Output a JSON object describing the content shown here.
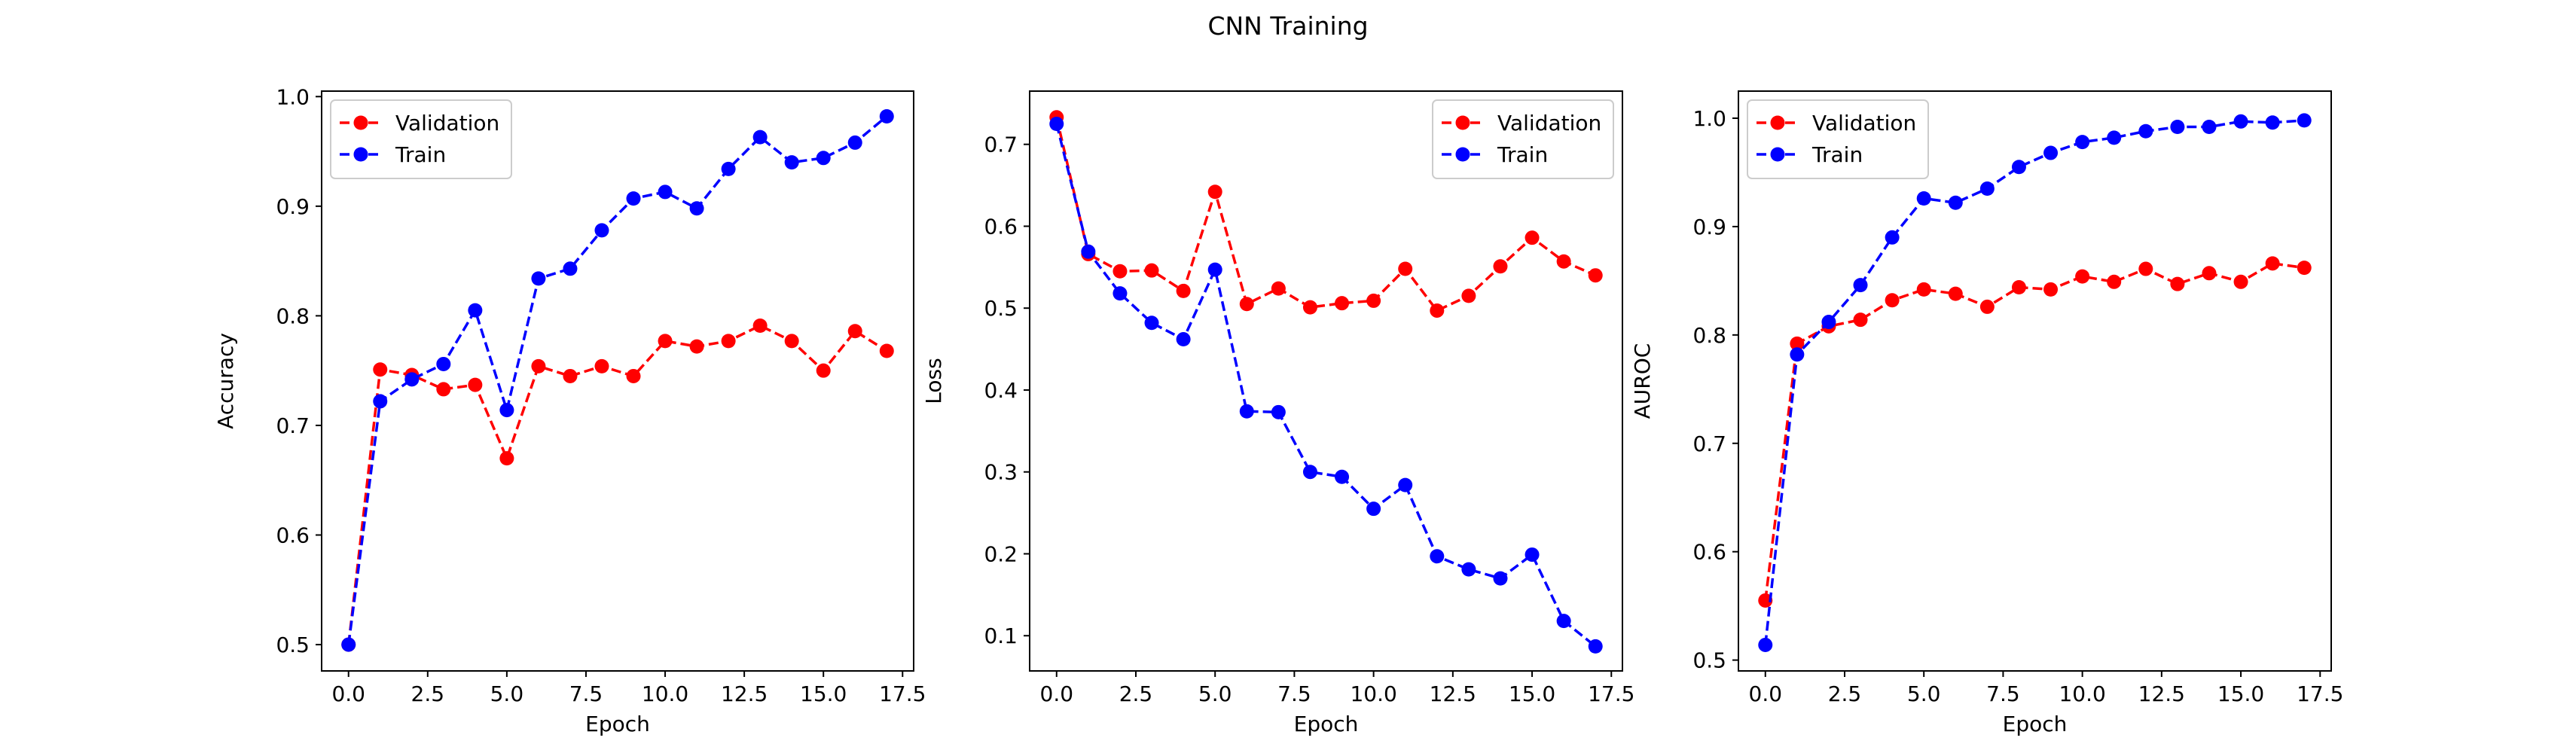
{
  "figure": {
    "title": "CNN Training"
  },
  "chart_data": [
    {
      "type": "line",
      "title": "",
      "xlabel": "Epoch",
      "ylabel": "Accuracy",
      "xlim": [
        -0.85,
        17.85
      ],
      "ylim": [
        0.476,
        1.005
      ],
      "xticks": [
        0.0,
        2.5,
        5.0,
        7.5,
        10.0,
        12.5,
        15.0,
        17.5
      ],
      "xtick_labels": [
        "0.0",
        "2.5",
        "5.0",
        "7.5",
        "10.0",
        "12.5",
        "15.0",
        "17.5"
      ],
      "yticks": [
        0.5,
        0.6,
        0.7,
        0.8,
        0.9,
        1.0
      ],
      "ytick_labels": [
        "0.5",
        "0.6",
        "0.7",
        "0.8",
        "0.9",
        "1.0"
      ],
      "legend_position": "top-left",
      "grid": false,
      "x": [
        0,
        1,
        2,
        3,
        4,
        5,
        6,
        7,
        8,
        9,
        10,
        11,
        12,
        13,
        14,
        15,
        16,
        17
      ],
      "series": [
        {
          "name": "Validation",
          "color": "#ff0000",
          "values": [
            0.5,
            0.751,
            0.746,
            0.733,
            0.737,
            0.67,
            0.754,
            0.745,
            0.754,
            0.745,
            0.777,
            0.772,
            0.777,
            0.791,
            0.777,
            0.75,
            0.786,
            0.768
          ]
        },
        {
          "name": "Train",
          "color": "#0000ff",
          "values": [
            0.5,
            0.722,
            0.742,
            0.756,
            0.805,
            0.714,
            0.834,
            0.843,
            0.878,
            0.907,
            0.913,
            0.898,
            0.934,
            0.963,
            0.94,
            0.944,
            0.958,
            0.982
          ]
        }
      ]
    },
    {
      "type": "line",
      "title": "",
      "xlabel": "Epoch",
      "ylabel": "Loss",
      "xlim": [
        -0.85,
        17.85
      ],
      "ylim": [
        0.057,
        0.765
      ],
      "xticks": [
        0.0,
        2.5,
        5.0,
        7.5,
        10.0,
        12.5,
        15.0,
        17.5
      ],
      "xtick_labels": [
        "0.0",
        "2.5",
        "5.0",
        "7.5",
        "10.0",
        "12.5",
        "15.0",
        "17.5"
      ],
      "yticks": [
        0.1,
        0.2,
        0.3,
        0.4,
        0.5,
        0.6,
        0.7
      ],
      "ytick_labels": [
        "0.1",
        "0.2",
        "0.3",
        "0.4",
        "0.5",
        "0.6",
        "0.7"
      ],
      "legend_position": "top-right",
      "grid": false,
      "x": [
        0,
        1,
        2,
        3,
        4,
        5,
        6,
        7,
        8,
        9,
        10,
        11,
        12,
        13,
        14,
        15,
        16,
        17
      ],
      "series": [
        {
          "name": "Validation",
          "color": "#ff0000",
          "values": [
            0.733,
            0.566,
            0.545,
            0.546,
            0.521,
            0.642,
            0.505,
            0.524,
            0.501,
            0.506,
            0.509,
            0.548,
            0.497,
            0.515,
            0.551,
            0.586,
            0.557,
            0.54
          ]
        },
        {
          "name": "Train",
          "color": "#0000ff",
          "values": [
            0.725,
            0.569,
            0.518,
            0.482,
            0.462,
            0.547,
            0.374,
            0.373,
            0.3,
            0.294,
            0.255,
            0.284,
            0.197,
            0.181,
            0.17,
            0.199,
            0.118,
            0.087
          ]
        }
      ]
    },
    {
      "type": "line",
      "title": "",
      "xlabel": "Epoch",
      "ylabel": "AUROC",
      "xlim": [
        -0.85,
        17.85
      ],
      "ylim": [
        0.49,
        1.025
      ],
      "xticks": [
        0.0,
        2.5,
        5.0,
        7.5,
        10.0,
        12.5,
        15.0,
        17.5
      ],
      "xtick_labels": [
        "0.0",
        "2.5",
        "5.0",
        "7.5",
        "10.0",
        "12.5",
        "15.0",
        "17.5"
      ],
      "yticks": [
        0.5,
        0.6,
        0.7,
        0.8,
        0.9,
        1.0
      ],
      "ytick_labels": [
        "0.5",
        "0.6",
        "0.7",
        "0.8",
        "0.9",
        "1.0"
      ],
      "legend_position": "top-left",
      "grid": false,
      "x": [
        0,
        1,
        2,
        3,
        4,
        5,
        6,
        7,
        8,
        9,
        10,
        11,
        12,
        13,
        14,
        15,
        16,
        17
      ],
      "series": [
        {
          "name": "Validation",
          "color": "#ff0000",
          "values": [
            0.555,
            0.792,
            0.808,
            0.814,
            0.832,
            0.842,
            0.838,
            0.826,
            0.844,
            0.842,
            0.854,
            0.849,
            0.861,
            0.847,
            0.857,
            0.849,
            0.866,
            0.862
          ]
        },
        {
          "name": "Train",
          "color": "#0000ff",
          "values": [
            0.514,
            0.782,
            0.812,
            0.846,
            0.89,
            0.926,
            0.922,
            0.935,
            0.955,
            0.968,
            0.978,
            0.982,
            0.988,
            0.992,
            0.992,
            0.997,
            0.996,
            0.998
          ]
        }
      ]
    }
  ]
}
